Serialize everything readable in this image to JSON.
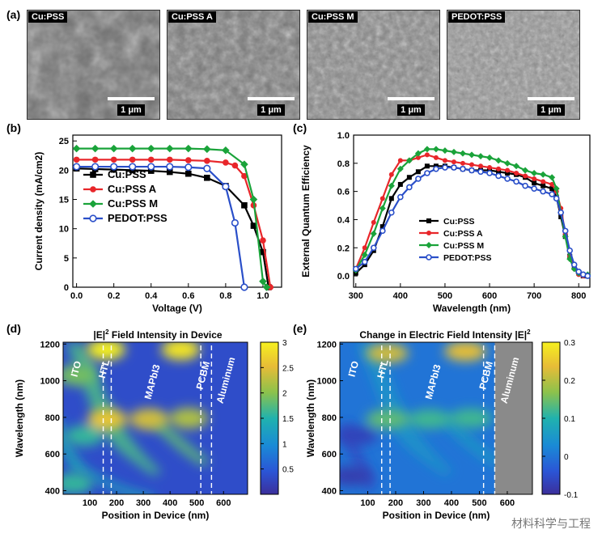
{
  "panel_a": {
    "label": "(a)",
    "images": [
      {
        "title": "Cu:PSS",
        "scale": "1 μm",
        "tone": "#6e6e6e"
      },
      {
        "title": "Cu:PSS A",
        "scale": "1 μm",
        "tone": "#7a7a7a"
      },
      {
        "title": "Cu:PSS M",
        "scale": "1 μm",
        "tone": "#888888"
      },
      {
        "title": "PEDOT:PSS",
        "scale": "1 μm",
        "tone": "#959595"
      }
    ]
  },
  "watermark": "材料科学与工程",
  "chart_data": [
    {
      "panel": "(b)",
      "type": "line",
      "title": "",
      "xlabel": "Voltage (V)",
      "ylabel": "Current density (mA/cm2)",
      "xlim": [
        -0.02,
        1.1
      ],
      "ylim": [
        0,
        26
      ],
      "xticks": [
        "0.0",
        "0.2",
        "0.4",
        "0.6",
        "0.8",
        "1.0"
      ],
      "yticks": [
        "0",
        "5",
        "10",
        "15",
        "20",
        "25"
      ],
      "series": [
        {
          "name": "Cu:PSS",
          "color": "#000000",
          "marker": "square",
          "x": [
            0,
            0.1,
            0.2,
            0.3,
            0.4,
            0.5,
            0.6,
            0.7,
            0.8,
            0.9,
            0.95,
            1.0,
            1.03
          ],
          "y": [
            20.3,
            20.2,
            20.1,
            20.0,
            19.9,
            19.7,
            19.4,
            18.7,
            17.3,
            14.0,
            10.5,
            6.0,
            0.0
          ]
        },
        {
          "name": "Cu:PSS A",
          "color": "#e8262a",
          "marker": "circle",
          "x": [
            0,
            0.1,
            0.2,
            0.3,
            0.4,
            0.5,
            0.6,
            0.7,
            0.8,
            0.85,
            0.9,
            0.95,
            1.0,
            1.04
          ],
          "y": [
            21.8,
            21.8,
            21.8,
            21.8,
            21.8,
            21.8,
            21.7,
            21.6,
            21.3,
            20.8,
            19.0,
            14.0,
            8.0,
            0.0
          ]
        },
        {
          "name": "Cu:PSS M",
          "color": "#1aa33a",
          "marker": "diamond",
          "x": [
            0,
            0.1,
            0.2,
            0.3,
            0.4,
            0.5,
            0.6,
            0.7,
            0.8,
            0.9,
            0.95,
            1.0,
            1.02
          ],
          "y": [
            23.7,
            23.7,
            23.7,
            23.7,
            23.7,
            23.7,
            23.7,
            23.6,
            23.4,
            21.0,
            15.0,
            1.0,
            0.0
          ]
        },
        {
          "name": "PEDOT:PSS",
          "color": "#2a4fc9",
          "marker": "circle-open",
          "x": [
            0,
            0.1,
            0.2,
            0.3,
            0.4,
            0.5,
            0.6,
            0.7,
            0.8,
            0.85,
            0.9
          ],
          "y": [
            20.6,
            20.6,
            20.6,
            20.6,
            20.6,
            20.6,
            20.5,
            20.3,
            17.2,
            11.0,
            0.0
          ]
        }
      ]
    },
    {
      "panel": "(c)",
      "type": "line",
      "title": "",
      "xlabel": "Wavelength (nm)",
      "ylabel": "External Quantum Efficiency",
      "xlim": [
        295,
        825
      ],
      "ylim": [
        -0.08,
        1.0
      ],
      "xticks": [
        "300",
        "400",
        "500",
        "600",
        "700",
        "800"
      ],
      "yticks": [
        "0.0",
        "0.2",
        "0.4",
        "0.6",
        "0.8",
        "1.0"
      ],
      "series": [
        {
          "name": "Cu:PSS",
          "color": "#000000",
          "marker": "square",
          "x": [
            300,
            320,
            340,
            360,
            380,
            400,
            420,
            440,
            460,
            480,
            500,
            520,
            540,
            560,
            580,
            600,
            620,
            640,
            660,
            680,
            700,
            720,
            740,
            750,
            760,
            770,
            780,
            790,
            800,
            810,
            820
          ],
          "y": [
            0.02,
            0.08,
            0.18,
            0.35,
            0.55,
            0.65,
            0.7,
            0.74,
            0.78,
            0.78,
            0.78,
            0.77,
            0.76,
            0.75,
            0.75,
            0.75,
            0.74,
            0.73,
            0.72,
            0.7,
            0.66,
            0.64,
            0.62,
            0.56,
            0.42,
            0.28,
            0.14,
            0.06,
            0.02,
            0.0,
            0.0
          ]
        },
        {
          "name": "Cu:PSS A",
          "color": "#e8262a",
          "marker": "circle",
          "x": [
            300,
            320,
            340,
            360,
            380,
            400,
            420,
            440,
            460,
            480,
            500,
            520,
            540,
            560,
            580,
            600,
            620,
            640,
            660,
            680,
            700,
            720,
            740,
            750,
            760,
            770,
            780,
            790,
            800,
            810,
            820
          ],
          "y": [
            0.05,
            0.2,
            0.38,
            0.55,
            0.72,
            0.82,
            0.82,
            0.84,
            0.86,
            0.84,
            0.82,
            0.81,
            0.8,
            0.79,
            0.78,
            0.77,
            0.76,
            0.75,
            0.73,
            0.71,
            0.69,
            0.67,
            0.65,
            0.6,
            0.48,
            0.3,
            0.14,
            0.05,
            0.01,
            0.0,
            0.0
          ]
        },
        {
          "name": "Cu:PSS M",
          "color": "#1aa33a",
          "marker": "diamond",
          "x": [
            300,
            320,
            340,
            360,
            380,
            400,
            420,
            440,
            460,
            480,
            500,
            520,
            540,
            560,
            580,
            600,
            620,
            640,
            660,
            680,
            700,
            720,
            740,
            750,
            760,
            770,
            780,
            790,
            800,
            810,
            820
          ],
          "y": [
            0.04,
            0.15,
            0.3,
            0.48,
            0.64,
            0.76,
            0.82,
            0.87,
            0.9,
            0.9,
            0.89,
            0.88,
            0.87,
            0.86,
            0.85,
            0.84,
            0.82,
            0.8,
            0.78,
            0.75,
            0.73,
            0.72,
            0.7,
            0.62,
            0.45,
            0.28,
            0.12,
            0.05,
            0.02,
            0.01,
            0.01
          ]
        },
        {
          "name": "PEDOT:PSS",
          "color": "#2a4fc9",
          "marker": "circle-open",
          "x": [
            300,
            320,
            340,
            360,
            380,
            400,
            420,
            440,
            460,
            480,
            500,
            520,
            540,
            560,
            580,
            600,
            620,
            640,
            660,
            680,
            700,
            720,
            740,
            750,
            760,
            770,
            780,
            790,
            800,
            810,
            820
          ],
          "y": [
            0.05,
            0.1,
            0.2,
            0.32,
            0.45,
            0.56,
            0.63,
            0.69,
            0.73,
            0.76,
            0.77,
            0.77,
            0.76,
            0.75,
            0.74,
            0.73,
            0.71,
            0.69,
            0.67,
            0.64,
            0.62,
            0.6,
            0.58,
            0.55,
            0.45,
            0.32,
            0.18,
            0.08,
            0.03,
            0.01,
            0.0
          ]
        }
      ]
    },
    {
      "panel": "(d)",
      "type": "heatmap",
      "title": "|E|2 Field Intensity in Device",
      "xlabel": "Position in Device (nm)",
      "ylabel": "Wavelength (nm)",
      "xlim": [
        0,
        690
      ],
      "ylim": [
        380,
        1210
      ],
      "xticks": [
        "100",
        "200",
        "300",
        "400",
        "500",
        "600"
      ],
      "yticks": [
        "400",
        "600",
        "800",
        "1000",
        "1200"
      ],
      "layers": [
        "ITO",
        "HTL",
        "MAPbI3",
        "PCBM",
        "Aluminum"
      ],
      "layer_boundaries": [
        150,
        180,
        515,
        555
      ],
      "colorbar_ticks": [
        "0.5",
        "1",
        "1.5",
        "2",
        "2.5",
        "3"
      ],
      "colorbar_range": [
        0,
        3
      ],
      "hotspots": [
        {
          "x": 160,
          "y": 1170,
          "intensity": 3.0
        },
        {
          "x": 440,
          "y": 1170,
          "intensity": 2.9
        },
        {
          "x": 165,
          "y": 790,
          "intensity": 2.6
        },
        {
          "x": 320,
          "y": 790,
          "intensity": 2.4
        },
        {
          "x": 470,
          "y": 795,
          "intensity": 2.2
        },
        {
          "x": 50,
          "y": 1030,
          "intensity": 1.9
        },
        {
          "x": 80,
          "y": 700,
          "intensity": 1.6
        },
        {
          "x": 40,
          "y": 440,
          "intensity": 1.6
        }
      ]
    },
    {
      "panel": "(e)",
      "type": "heatmap",
      "title": "Change in Electric Field Intensity |E|2",
      "xlabel": "Position in Device (nm)",
      "ylabel": "Wavelength (nm)",
      "xlim": [
        0,
        690
      ],
      "ylim": [
        380,
        1210
      ],
      "xticks": [
        "100",
        "200",
        "300",
        "400",
        "500",
        "600"
      ],
      "yticks": [
        "400",
        "600",
        "800",
        "1000",
        "1200"
      ],
      "layers": [
        "ITO",
        "HTL",
        "MAPbI3",
        "PCBM",
        "Aluminum"
      ],
      "layer_boundaries": [
        150,
        180,
        515,
        555
      ],
      "colorbar_ticks": [
        "-0.1",
        "0",
        "0.1",
        "0.2",
        "0.3"
      ],
      "colorbar_range": [
        -0.1,
        0.3
      ],
      "hotspots": [
        {
          "x": 170,
          "y": 1150,
          "intensity": 0.22
        },
        {
          "x": 450,
          "y": 1160,
          "intensity": 0.24
        },
        {
          "x": 170,
          "y": 790,
          "intensity": 0.14
        },
        {
          "x": 320,
          "y": 790,
          "intensity": 0.12
        },
        {
          "x": 470,
          "y": 795,
          "intensity": 0.12
        },
        {
          "x": 60,
          "y": 700,
          "intensity": -0.07
        },
        {
          "x": 40,
          "y": 480,
          "intensity": -0.08
        }
      ]
    }
  ]
}
